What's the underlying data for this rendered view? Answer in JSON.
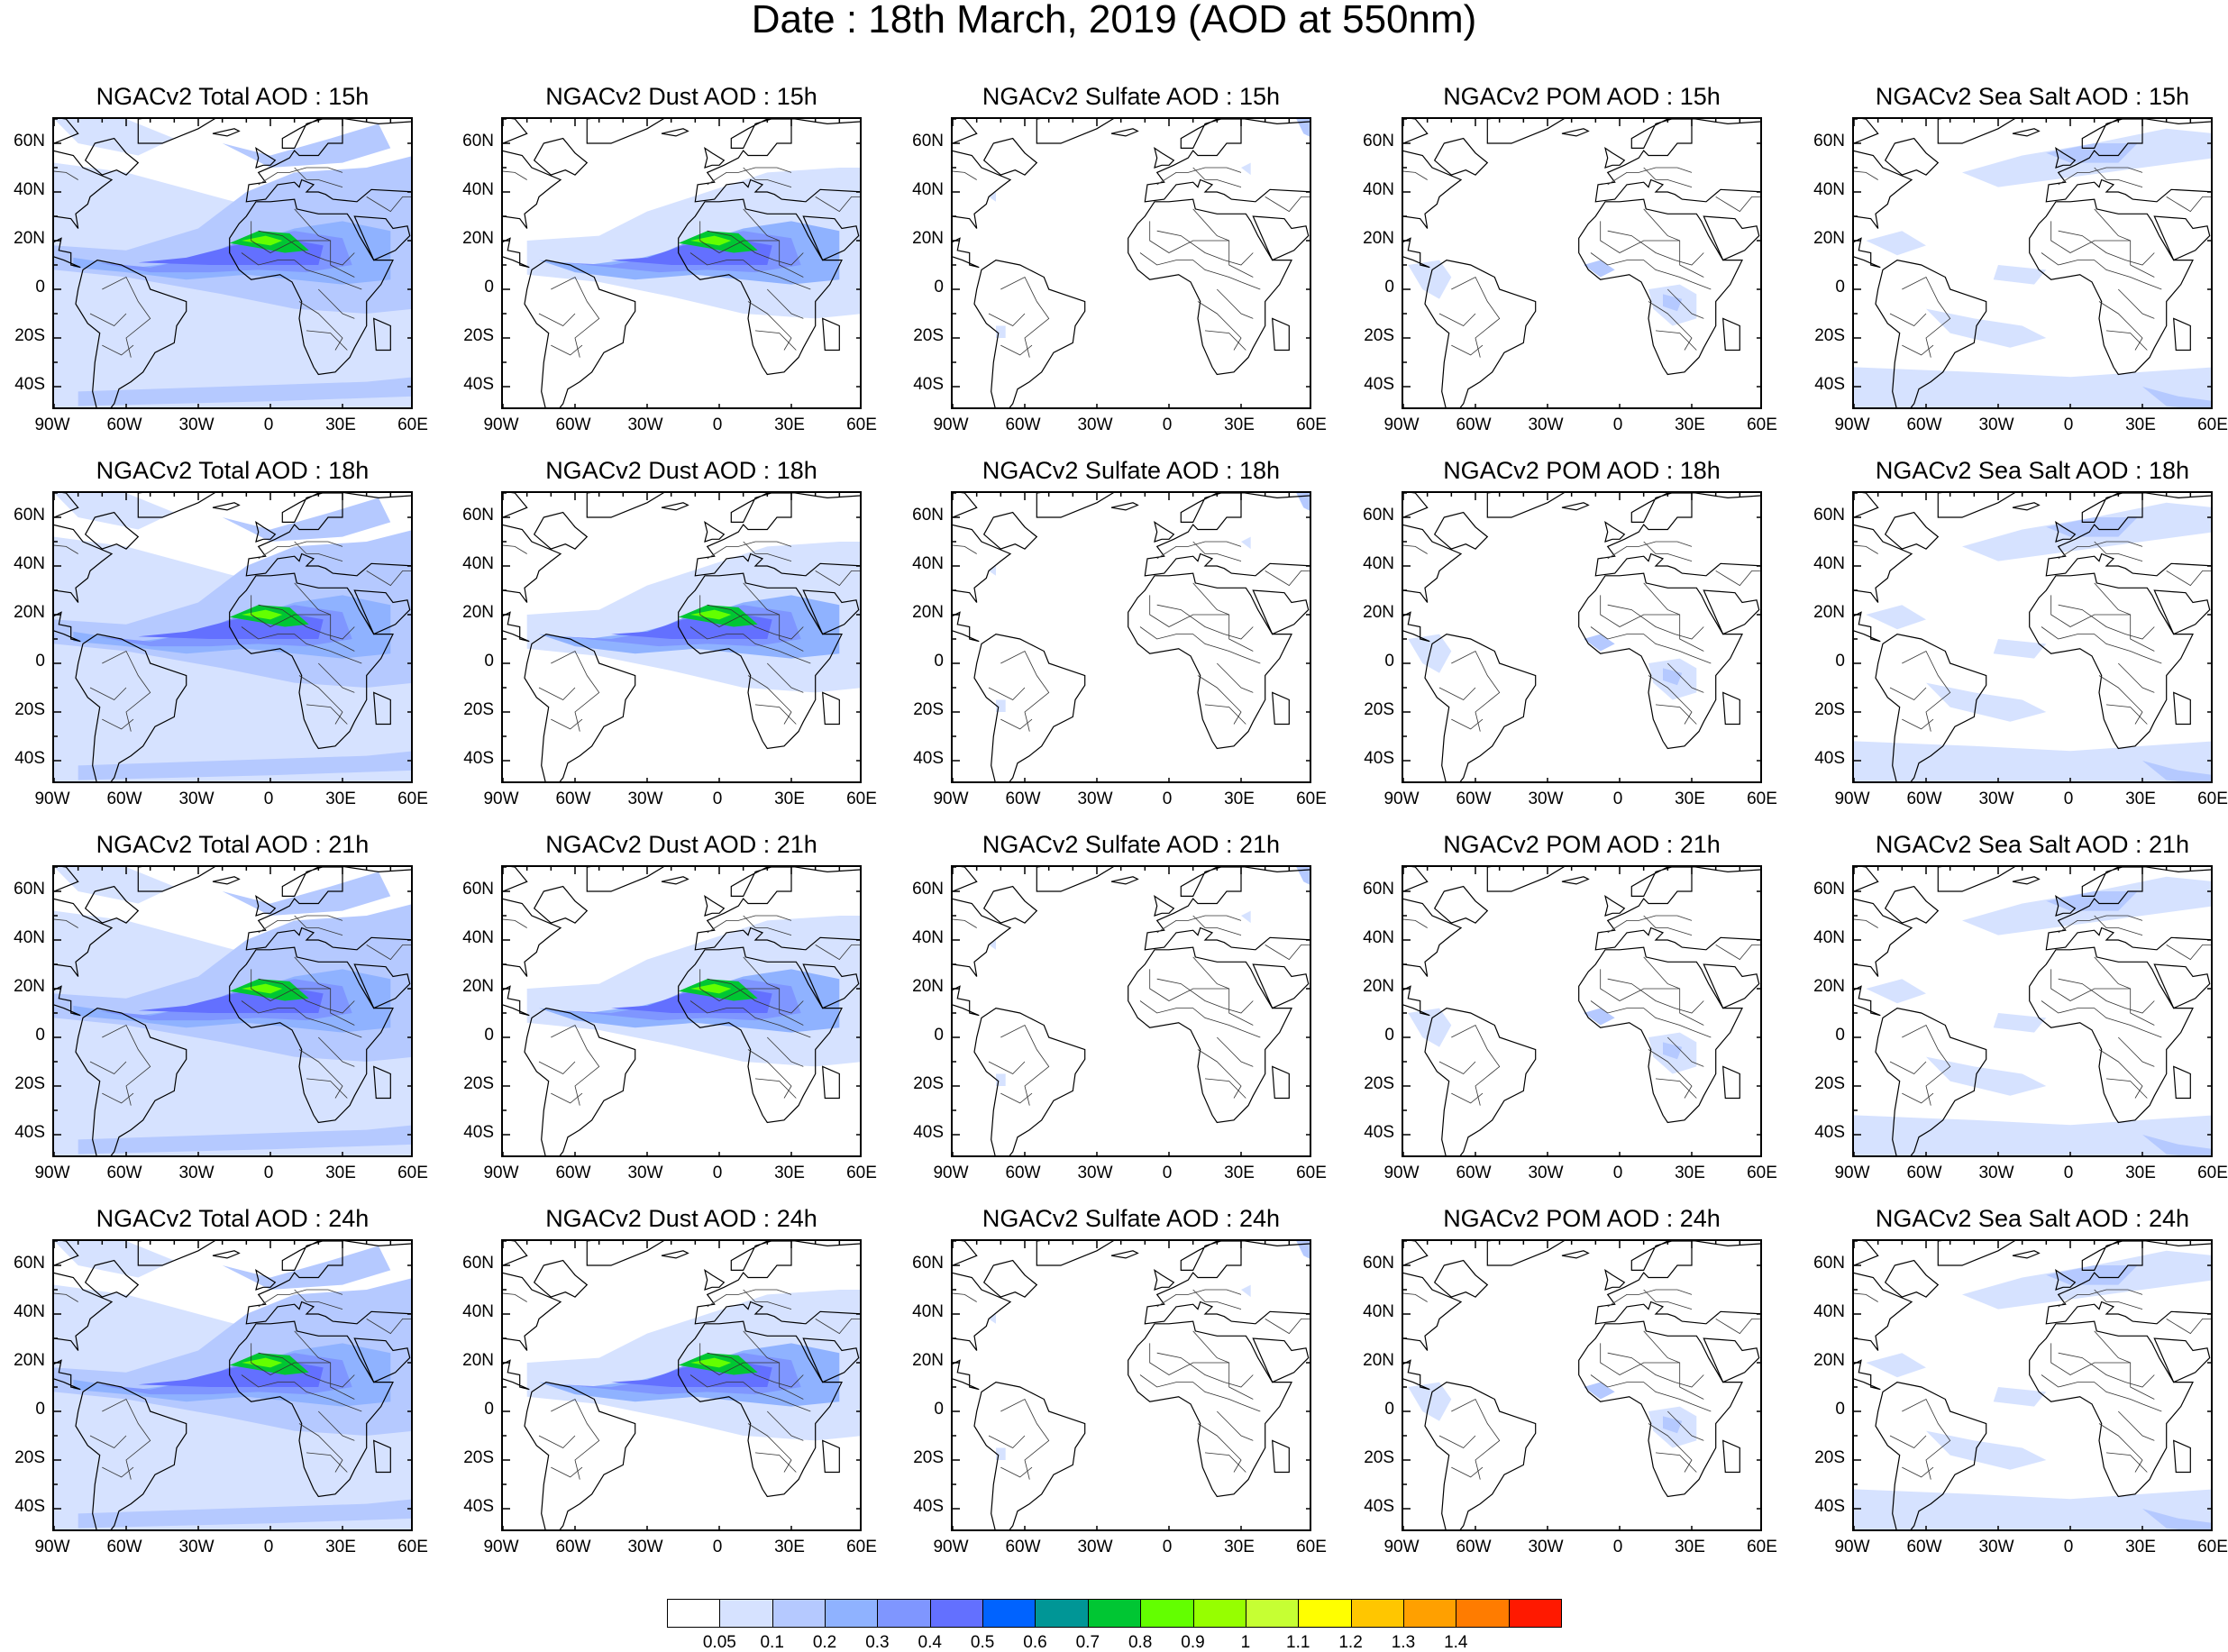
{
  "title": "Date : 18th March, 2019 (AOD at 550nm)",
  "panels": [
    {
      "title": "NGACv2 Total AOD : 15h",
      "species": "total"
    },
    {
      "title": "NGACv2 Dust AOD : 15h",
      "species": "dust"
    },
    {
      "title": "NGACv2 Sulfate AOD : 15h",
      "species": "sulfate"
    },
    {
      "title": "NGACv2 POM AOD : 15h",
      "species": "pom"
    },
    {
      "title": "NGACv2 Sea Salt AOD : 15h",
      "species": "seasalt"
    },
    {
      "title": "NGACv2 Total AOD : 18h",
      "species": "total"
    },
    {
      "title": "NGACv2 Dust AOD : 18h",
      "species": "dust"
    },
    {
      "title": "NGACv2 Sulfate AOD : 18h",
      "species": "sulfate"
    },
    {
      "title": "NGACv2 POM AOD : 18h",
      "species": "pom"
    },
    {
      "title": "NGACv2 Sea Salt AOD : 18h",
      "species": "seasalt"
    },
    {
      "title": "NGACv2 Total AOD : 21h",
      "species": "total"
    },
    {
      "title": "NGACv2 Dust AOD : 21h",
      "species": "dust"
    },
    {
      "title": "NGACv2 Sulfate AOD : 21h",
      "species": "sulfate"
    },
    {
      "title": "NGACv2 POM AOD : 21h",
      "species": "pom"
    },
    {
      "title": "NGACv2 Sea Salt AOD : 21h",
      "species": "seasalt"
    },
    {
      "title": "NGACv2 Total AOD : 24h",
      "species": "total"
    },
    {
      "title": "NGACv2 Dust AOD : 24h",
      "species": "dust"
    },
    {
      "title": "NGACv2 Sulfate AOD : 24h",
      "species": "sulfate"
    },
    {
      "title": "NGACv2 POM AOD : 24h",
      "species": "pom"
    },
    {
      "title": "NGACv2 Sea Salt  AOD : 24h",
      "species": "seasalt"
    }
  ],
  "lon_ticks": [
    "90W",
    "60W",
    "30W",
    "0",
    "30E",
    "60E"
  ],
  "lat_ticks": [
    "60N",
    "40N",
    "20N",
    "0",
    "20S",
    "40S"
  ],
  "colorbar": {
    "colors": [
      "#ffffff",
      "#d6e2ff",
      "#b5c9ff",
      "#8fb2ff",
      "#7f96ff",
      "#6370ff",
      "#0063ff",
      "#009696",
      "#00c633",
      "#63ff00",
      "#96ff00",
      "#c6ff33",
      "#ffff00",
      "#ffc600",
      "#ffa000",
      "#ff7c00",
      "#ff1900"
    ],
    "labels": [
      "0.05",
      "0.1",
      "0.2",
      "0.3",
      "0.4",
      "0.5",
      "0.6",
      "0.7",
      "0.8",
      "0.9",
      "1",
      "1.1",
      "1.2",
      "1.3",
      "1.4"
    ]
  }
}
